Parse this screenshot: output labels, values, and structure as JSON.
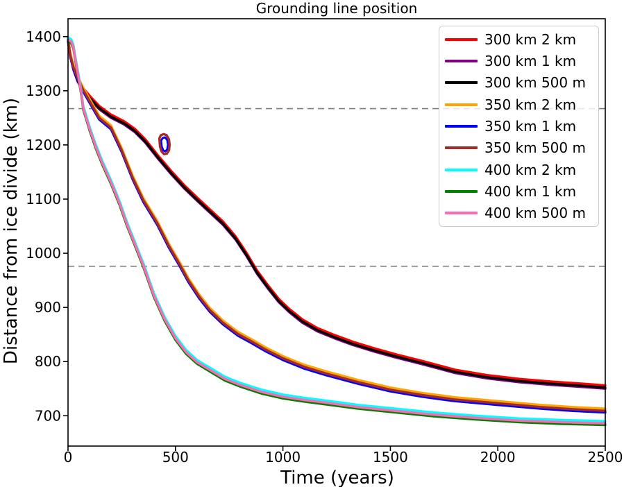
{
  "chart_data": {
    "type": "line",
    "title": "Grounding line position",
    "xlabel": "Time (years)",
    "ylabel": "Distance from ice divide (km)",
    "xlim": [
      0,
      2500
    ],
    "ylim": [
      644,
      1433
    ],
    "xticks": [
      "0",
      "500",
      "1000",
      "1500",
      "2000",
      "2500"
    ],
    "yticks": [
      "700",
      "800",
      "900",
      "1000",
      "1100",
      "1200",
      "1300",
      "1400"
    ],
    "grid": false,
    "axis_color": "#000000",
    "hlines": {
      "values": [
        1267,
        976
      ],
      "color": "#7f7f7f",
      "style": "dashed",
      "note": "horizontal dashed reference lines"
    },
    "legend": {
      "position": "upper right",
      "entries": [
        {
          "label": "300 km 2 km",
          "color": "#ff0000"
        },
        {
          "label": "300 km 1 km",
          "color": "#800080"
        },
        {
          "label": "300 km 500 m",
          "color": "#000000"
        },
        {
          "label": "350 km 2 km",
          "color": "#ffa500"
        },
        {
          "label": "350 km 1 km",
          "color": "#0000ff"
        },
        {
          "label": "350 km 500 m",
          "color": "#a52a2a"
        },
        {
          "label": "400 km 2 km",
          "color": "#00ffff"
        },
        {
          "label": "400 km 1 km",
          "color": "#008000"
        },
        {
          "label": "400 km 500 m",
          "color": "#ff69b4"
        }
      ]
    },
    "groups": [
      {
        "id": "g300",
        "points": [
          [
            0,
            1395
          ],
          [
            10,
            1367
          ],
          [
            25,
            1341
          ],
          [
            45,
            1319
          ],
          [
            70,
            1301
          ],
          [
            100,
            1287
          ],
          [
            145,
            1268
          ],
          [
            200,
            1252
          ],
          [
            260,
            1240
          ],
          [
            310,
            1226
          ],
          [
            360,
            1206
          ],
          [
            420,
            1176
          ],
          [
            480,
            1148
          ],
          [
            540,
            1122
          ],
          [
            600,
            1099
          ],
          [
            660,
            1077
          ],
          [
            720,
            1055
          ],
          [
            780,
            1027
          ],
          [
            830,
            997
          ],
          [
            880,
            964
          ],
          [
            930,
            937
          ],
          [
            980,
            912
          ],
          [
            1030,
            893
          ],
          [
            1090,
            874
          ],
          [
            1160,
            858
          ],
          [
            1240,
            845
          ],
          [
            1330,
            832
          ],
          [
            1430,
            820
          ],
          [
            1530,
            809
          ],
          [
            1650,
            797
          ],
          [
            1800,
            781
          ],
          [
            1950,
            771
          ],
          [
            2100,
            764
          ],
          [
            2250,
            759
          ],
          [
            2400,
            755
          ],
          [
            2500,
            752
          ]
        ]
      },
      {
        "id": "g350",
        "points": [
          [
            0,
            1395
          ],
          [
            10,
            1366
          ],
          [
            25,
            1344
          ],
          [
            45,
            1323
          ],
          [
            70,
            1302
          ],
          [
            100,
            1281
          ],
          [
            145,
            1250
          ],
          [
            200,
            1232
          ],
          [
            250,
            1190
          ],
          [
            300,
            1140
          ],
          [
            350,
            1098
          ],
          [
            416,
            1055
          ],
          [
            470,
            1013
          ],
          [
            523,
            977
          ],
          [
            560,
            950
          ],
          [
            610,
            920
          ],
          [
            660,
            895
          ],
          [
            720,
            872
          ],
          [
            790,
            851
          ],
          [
            850,
            838
          ],
          [
            920,
            822
          ],
          [
            1000,
            806
          ],
          [
            1100,
            790
          ],
          [
            1200,
            778
          ],
          [
            1350,
            762
          ],
          [
            1500,
            748
          ],
          [
            1650,
            738
          ],
          [
            1800,
            730
          ],
          [
            2000,
            723
          ],
          [
            2200,
            716
          ],
          [
            2350,
            712
          ],
          [
            2500,
            709
          ]
        ]
      },
      {
        "id": "g400",
        "points": [
          [
            0,
            1394
          ],
          [
            15,
            1391
          ],
          [
            25,
            1381
          ],
          [
            35,
            1357
          ],
          [
            50,
            1323
          ],
          [
            62,
            1295
          ],
          [
            71,
            1268
          ],
          [
            100,
            1230
          ],
          [
            130,
            1196
          ],
          [
            160,
            1166
          ],
          [
            200,
            1131
          ],
          [
            240,
            1092
          ],
          [
            275,
            1053
          ],
          [
            310,
            1018
          ],
          [
            351,
            977
          ],
          [
            400,
            922
          ],
          [
            450,
            878
          ],
          [
            500,
            843
          ],
          [
            550,
            817
          ],
          [
            600,
            799
          ],
          [
            663,
            784
          ],
          [
            730,
            768
          ],
          [
            800,
            757
          ],
          [
            900,
            744
          ],
          [
            1000,
            735
          ],
          [
            1100,
            729
          ],
          [
            1200,
            724
          ],
          [
            1350,
            716
          ],
          [
            1500,
            710
          ],
          [
            1700,
            702
          ],
          [
            1900,
            696
          ],
          [
            2100,
            691
          ],
          [
            2300,
            688
          ],
          [
            2500,
            686
          ]
        ]
      }
    ],
    "series": [
      {
        "name": "300 km 2 km",
        "color": "#ff0000",
        "group": "g300",
        "offset": 4
      },
      {
        "name": "300 km 1 km",
        "color": "#800080",
        "group": "g300",
        "offset": -2
      },
      {
        "name": "300 km 500 m",
        "color": "#000000",
        "group": "g300",
        "offset": 0
      },
      {
        "name": "350 km 2 km",
        "color": "#ffa500",
        "group": "g350",
        "offset": 4
      },
      {
        "name": "350 km 1 km",
        "color": "#0000ff",
        "group": "g350",
        "offset": -3
      },
      {
        "name": "350 km 500 m",
        "color": "#a52a2a",
        "group": "g350",
        "offset": 0
      },
      {
        "name": "400 km 2 km",
        "color": "#00ffff",
        "group": "g400",
        "offset": 4
      },
      {
        "name": "400 km 1 km",
        "color": "#008000",
        "group": "g400",
        "offset": -3
      },
      {
        "name": "400 km 500 m",
        "color": "#ff69b4",
        "group": "g400",
        "offset": 0
      }
    ],
    "loops": [
      {
        "name": "readvance-loop-350km-1km",
        "color": "#0000ff",
        "width": 3,
        "points": [
          [
            433,
            1208
          ],
          [
            441,
            1213
          ],
          [
            452,
            1214
          ],
          [
            462,
            1209
          ],
          [
            465,
            1200
          ],
          [
            462,
            1192
          ],
          [
            453,
            1188
          ],
          [
            443,
            1190
          ],
          [
            436,
            1197
          ]
        ]
      },
      {
        "name": "readvance-loop-350km-500m",
        "color": "#a52a2a",
        "width": 3.4,
        "points": [
          [
            425,
            1212
          ],
          [
            432,
            1218
          ],
          [
            445,
            1220
          ],
          [
            459,
            1218
          ],
          [
            470,
            1210
          ],
          [
            473,
            1200
          ],
          [
            470,
            1190
          ],
          [
            460,
            1184
          ],
          [
            447,
            1183
          ],
          [
            435,
            1188
          ],
          [
            428,
            1197
          ]
        ]
      }
    ]
  }
}
